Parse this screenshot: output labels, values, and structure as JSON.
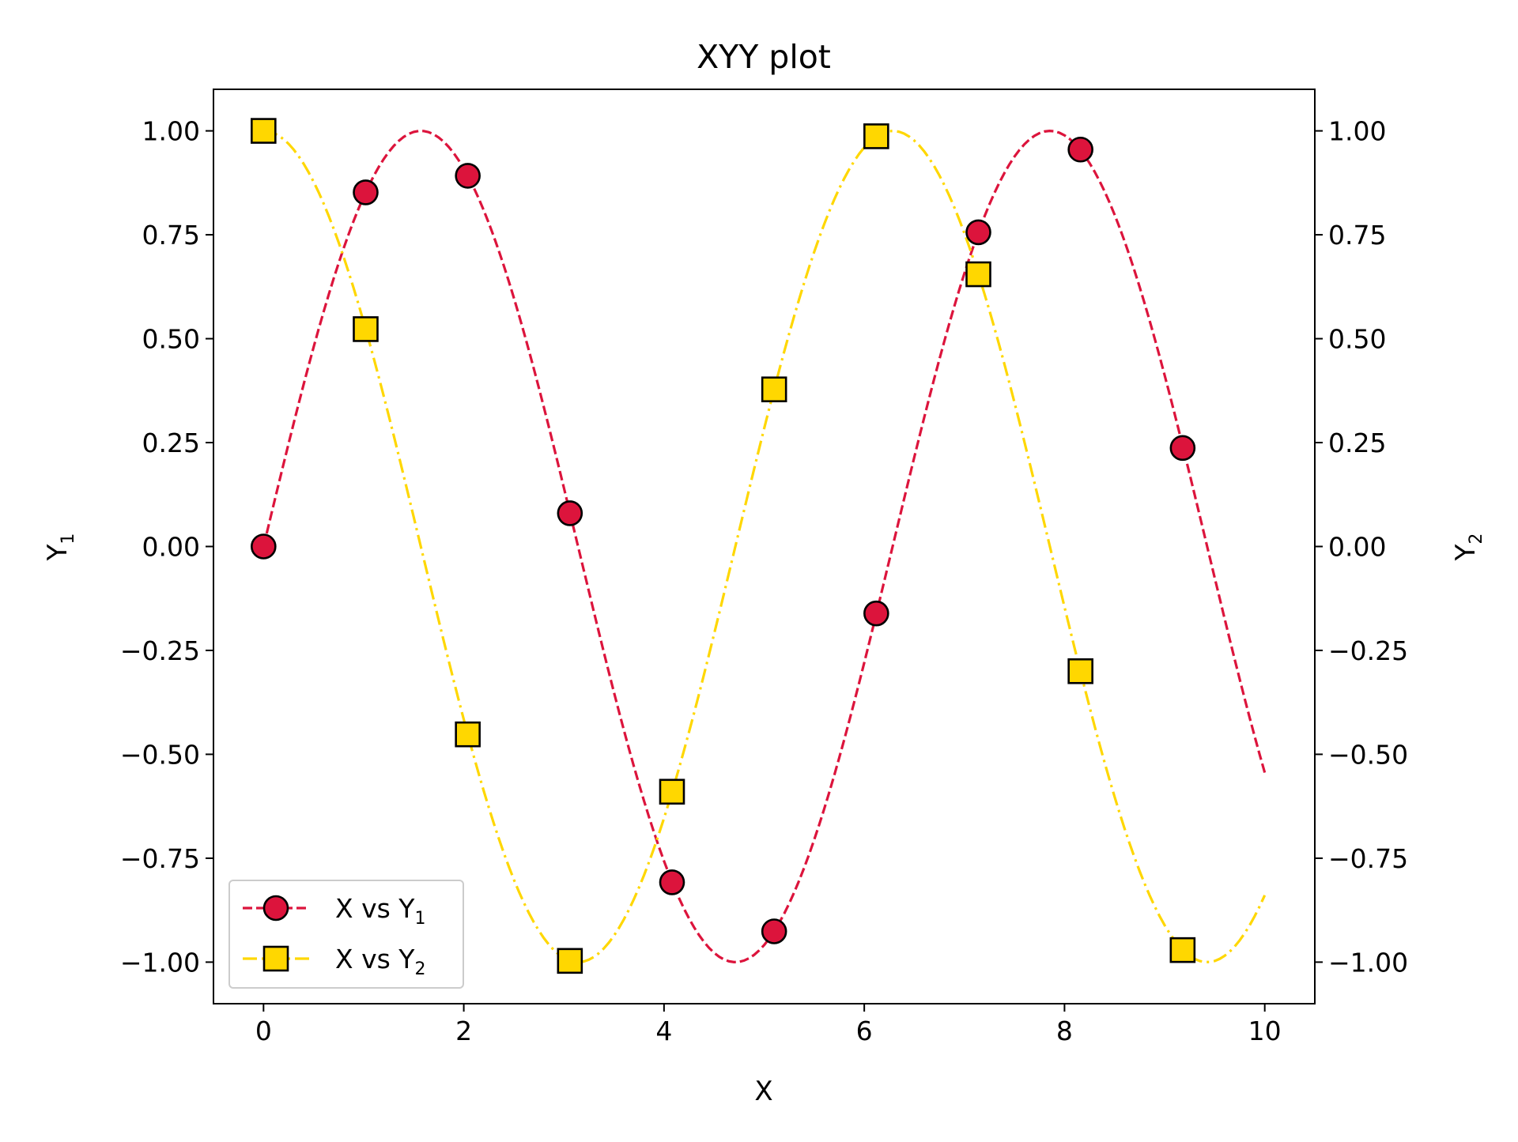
{
  "chart_data": {
    "type": "line",
    "title": "XYY plot",
    "xlabel": "X",
    "ylabel_left": {
      "base": "Y",
      "sub": "1"
    },
    "ylabel_right": {
      "base": "Y",
      "sub": "2"
    },
    "xlim": [
      -0.5,
      10.5
    ],
    "ylim": [
      -1.1,
      1.1
    ],
    "x_ticks": [
      0,
      2,
      4,
      6,
      8,
      10
    ],
    "x_tick_labels": [
      "0",
      "2",
      "4",
      "6",
      "8",
      "10"
    ],
    "y_ticks": [
      1.0,
      0.75,
      0.5,
      0.25,
      0.0,
      -0.25,
      -0.5,
      -0.75,
      -1.0
    ],
    "y_tick_labels": [
      "1.00",
      "0.75",
      "0.50",
      "0.25",
      "0.00",
      "−0.25",
      "−0.50",
      "−0.75",
      "−1.00"
    ],
    "grid": false,
    "legend_position": "lower-left",
    "series": [
      {
        "name": "X vs Y1",
        "legend_label": {
          "base": "X vs Y",
          "sub": "1"
        },
        "axis": "left",
        "function": "sin",
        "color": "#DC143C",
        "line_style": "dashed",
        "marker": "circle",
        "x_markers": [
          0.0,
          1.02,
          2.04,
          3.06,
          4.08,
          5.1,
          6.12,
          7.14,
          8.16,
          9.18
        ],
        "y_markers": [
          0.0,
          0.852,
          0.892,
          0.08,
          -0.808,
          -0.926,
          -0.161,
          0.756,
          0.955,
          0.237
        ]
      },
      {
        "name": "X vs Y2",
        "legend_label": {
          "base": "X vs Y",
          "sub": "2"
        },
        "axis": "right",
        "function": "cos",
        "color": "#FFD700",
        "line_style": "dashdot",
        "marker": "square",
        "x_markers": [
          0.0,
          1.02,
          2.04,
          3.06,
          4.08,
          5.1,
          6.12,
          7.14,
          8.16,
          9.18
        ],
        "y_markers": [
          1.0,
          0.523,
          -0.452,
          -0.997,
          -0.59,
          0.378,
          0.987,
          0.655,
          -0.3,
          -0.971
        ]
      }
    ]
  }
}
